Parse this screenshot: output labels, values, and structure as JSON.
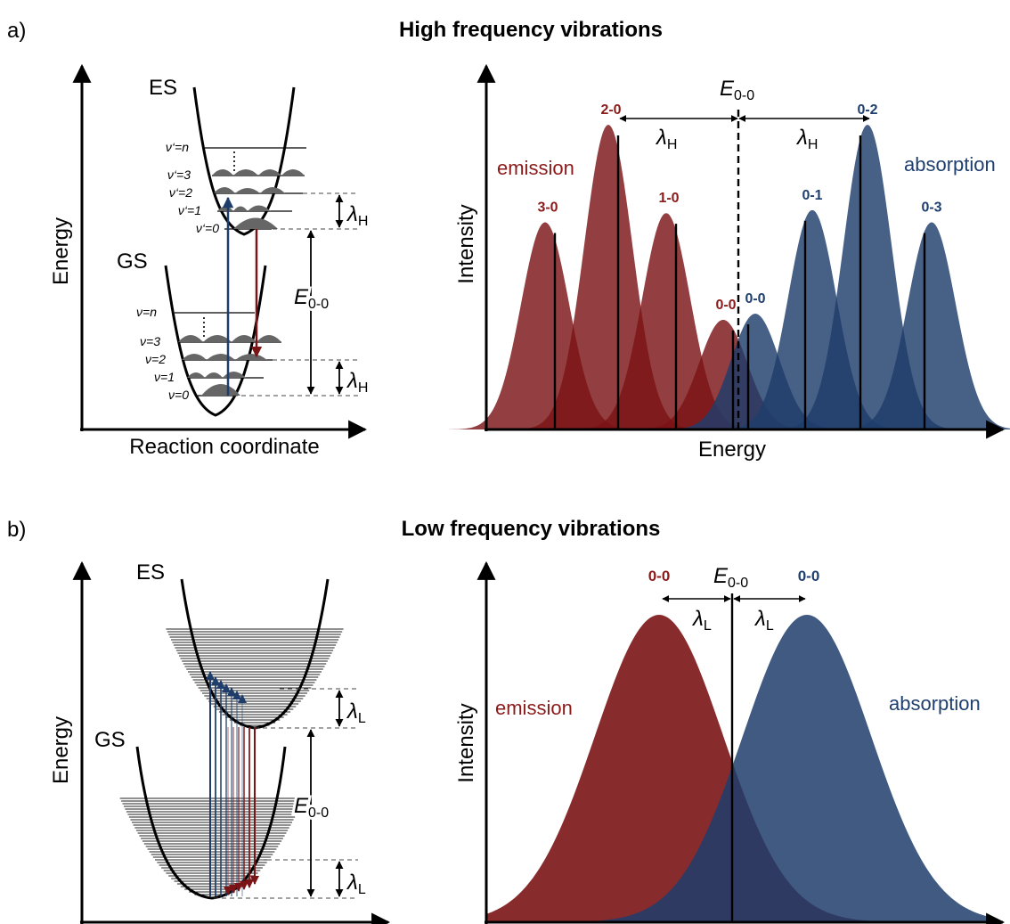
{
  "colors": {
    "emission": "#7b1416",
    "emission_label": "#8b1a1a",
    "absorption": "#1e3d6b",
    "absorption_label": "#1f3f6e",
    "wavepacket": "#666666",
    "axis": "#000000"
  },
  "panel_a": {
    "tag": "a)",
    "title": "High frequency vibrations",
    "diagram": {
      "y_axis": "Energy",
      "x_axis": "Reaction coordinate",
      "es": "ES",
      "gs": "GS",
      "es_levels": [
        "ν‘=n",
        "ν‘=3",
        "ν‘=2",
        "ν‘=1",
        "ν‘=0"
      ],
      "gs_levels": [
        "ν=n",
        "ν=3",
        "ν=2",
        "ν=1",
        "ν=0"
      ],
      "lambda": "λ",
      "lambda_sub": "H",
      "e00": "E",
      "e00_sub": "0-0"
    },
    "spectrum": {
      "y_axis": "Intensity",
      "x_axis": "Energy",
      "emission_label": "emission",
      "absorption_label": "absorption",
      "e00": "E",
      "e00_sub": "0-0",
      "lambda": "λ",
      "lambda_sub": "H",
      "emission_peaks": [
        {
          "label": "3-0",
          "rel_height": 0.68
        },
        {
          "label": "2-0",
          "rel_height": 1.0
        },
        {
          "label": "1-0",
          "rel_height": 0.71
        },
        {
          "label": "0-0",
          "rel_height": 0.36
        }
      ],
      "absorption_peaks": [
        {
          "label": "0-0",
          "rel_height": 0.38
        },
        {
          "label": "0-1",
          "rel_height": 0.72
        },
        {
          "label": "0-2",
          "rel_height": 1.0
        },
        {
          "label": "0-3",
          "rel_height": 0.68
        }
      ]
    }
  },
  "panel_b": {
    "tag": "b)",
    "title": "Low frequency vibrations",
    "diagram": {
      "y_axis": "Energy",
      "es": "ES",
      "gs": "GS",
      "lambda": "λ",
      "lambda_sub": "L",
      "e00": "E",
      "e00_sub": "0-0"
    },
    "spectrum": {
      "y_axis": "Intensity",
      "emission_label": "emission",
      "absorption_label": "absorption",
      "e00": "E",
      "e00_sub": "0-0",
      "lambda": "λ",
      "lambda_sub": "L",
      "emission_peak_label": "0-0",
      "absorption_peak_label": "0-0"
    }
  }
}
